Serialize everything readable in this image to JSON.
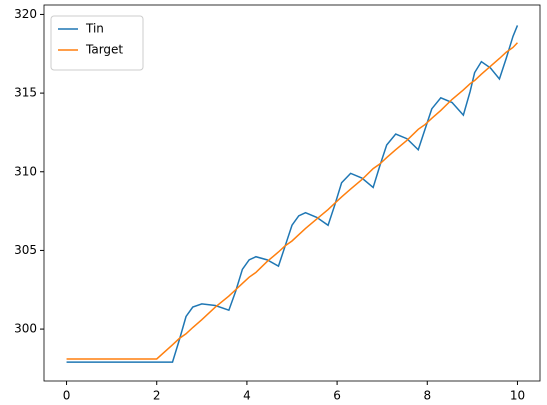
{
  "chart_data": {
    "type": "line",
    "x": [
      0,
      2,
      2.35,
      2.5,
      2.65,
      2.8,
      3.0,
      3.3,
      3.6,
      3.75,
      3.9,
      4.05,
      4.2,
      4.45,
      4.7,
      4.85,
      5.0,
      5.15,
      5.3,
      5.55,
      5.8,
      5.95,
      6.1,
      6.3,
      6.55,
      6.8,
      6.95,
      7.1,
      7.3,
      7.55,
      7.8,
      7.95,
      8.1,
      8.3,
      8.55,
      8.8,
      8.95,
      9.05,
      9.2,
      9.4,
      9.6,
      9.75,
      9.9,
      10
    ],
    "series": [
      {
        "name": "Tin",
        "color": "#1f77b4",
        "values": [
          297.9,
          297.9,
          297.9,
          299.3,
          300.8,
          301.4,
          301.6,
          301.5,
          301.2,
          302.4,
          303.8,
          304.4,
          304.6,
          304.4,
          304.0,
          305.3,
          306.6,
          307.2,
          307.4,
          307.1,
          306.6,
          307.9,
          309.3,
          309.9,
          309.6,
          309.0,
          310.4,
          311.7,
          312.4,
          312.1,
          311.4,
          312.7,
          314.0,
          314.7,
          314.4,
          313.6,
          315.1,
          316.3,
          317.0,
          316.6,
          315.9,
          317.2,
          318.6,
          319.3
        ]
      },
      {
        "name": "Target",
        "color": "#ff7f0e",
        "values": [
          298.1,
          298.1,
          299.0,
          299.4,
          299.7,
          300.1,
          300.6,
          301.4,
          302.1,
          302.5,
          302.9,
          303.3,
          303.6,
          304.3,
          304.9,
          305.3,
          305.6,
          306.0,
          306.4,
          307.0,
          307.6,
          308.0,
          308.4,
          308.9,
          309.5,
          310.2,
          310.5,
          310.9,
          311.4,
          312.0,
          312.7,
          313.0,
          313.4,
          313.9,
          314.6,
          315.2,
          315.6,
          315.8,
          316.2,
          316.7,
          317.2,
          317.6,
          317.9,
          318.2
        ]
      }
    ],
    "xlim": [
      -0.5,
      10.5
    ],
    "xticks": [
      0,
      2,
      4,
      6,
      8,
      10
    ],
    "ylim": [
      296.7,
      320.6
    ],
    "yticks": [
      300,
      305,
      310,
      315,
      320
    ],
    "legend": "upper-left"
  }
}
